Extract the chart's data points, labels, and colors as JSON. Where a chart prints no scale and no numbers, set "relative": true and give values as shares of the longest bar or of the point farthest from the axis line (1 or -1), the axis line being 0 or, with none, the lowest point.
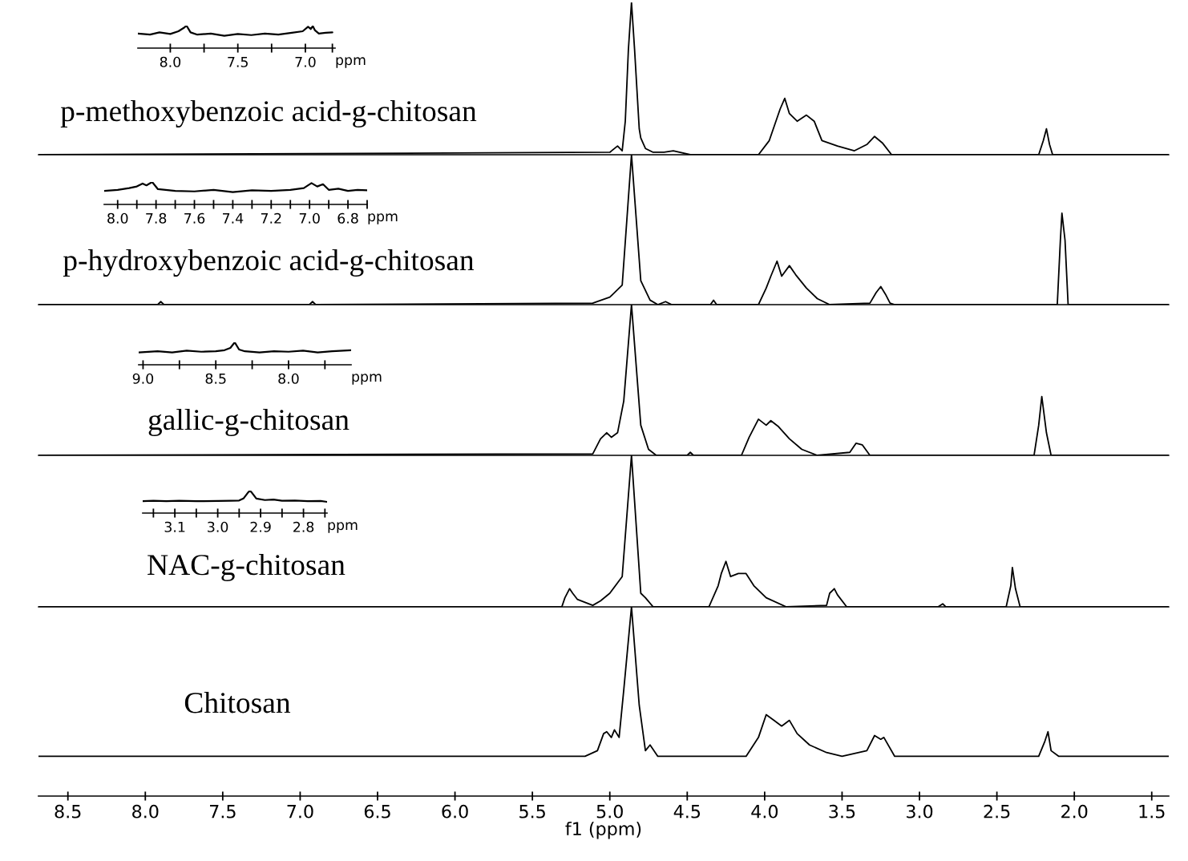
{
  "chart_data": [
    {
      "type": "line",
      "relative": true,
      "tick_labels": false,
      "xlim": [
        8.69,
        1.39
      ],
      "x": [
        8.69,
        5.0,
        4.95,
        4.92,
        4.9,
        4.88,
        4.86,
        4.84,
        4.81,
        4.8,
        4.77,
        4.72,
        4.65,
        4.59,
        4.48,
        4.04,
        3.97,
        3.9,
        3.87,
        3.84,
        3.79,
        3.73,
        3.68,
        3.63,
        3.53,
        3.42,
        3.34,
        3.29,
        3.24,
        3.18,
        2.23,
        2.2,
        2.18,
        2.16,
        2.14,
        1.39
      ],
      "series": [
        {
          "name": "p-methoxybenzoic acid-g-chitosan",
          "color": "#000000",
          "values": [
            0,
            0.016,
            0.057,
            0.026,
            0.22,
            0.69,
            1,
            0.69,
            0.17,
            0.11,
            0.041,
            0.016,
            0.016,
            0.026,
            0,
            0,
            0.093,
            0.3,
            0.37,
            0.27,
            0.22,
            0.26,
            0.22,
            0.093,
            0.057,
            0.026,
            0.067,
            0.12,
            0.078,
            0,
            0,
            0.093,
            0.17,
            0.067,
            0,
            0
          ]
        }
      ]
    },
    {
      "type": "line",
      "relative": true,
      "tick_labels": false,
      "xlim": [
        8.69,
        1.39
      ],
      "x": [
        8.69,
        7.92,
        7.9,
        7.88,
        6.94,
        6.92,
        6.9,
        5.11,
        5.0,
        4.92,
        4.86,
        4.8,
        4.74,
        4.69,
        4.64,
        4.6,
        4.35,
        4.33,
        4.31,
        4.04,
        3.99,
        3.96,
        3.92,
        3.89,
        3.84,
        3.8,
        3.73,
        3.66,
        3.58,
        3.32,
        3.28,
        3.25,
        3.22,
        3.19,
        3.16,
        2.11,
        2.09,
        2.08,
        2.06,
        2.04,
        1.39
      ],
      "series": [
        {
          "name": "p-hydroxybenzoic acid-g-chitosan",
          "color": "#000000",
          "values": [
            0,
            0,
            0.02,
            0,
            0,
            0.02,
            0,
            0.01,
            0.05,
            0.13,
            1,
            0.16,
            0.03,
            0,
            0.02,
            0,
            0,
            0.03,
            0,
            0,
            0.11,
            0.19,
            0.29,
            0.19,
            0.26,
            0.2,
            0.11,
            0.04,
            0,
            0.01,
            0.08,
            0.12,
            0.07,
            0.01,
            0,
            0,
            0.43,
            0.61,
            0.43,
            0,
            0
          ]
        }
      ]
    },
    {
      "type": "line",
      "relative": true,
      "tick_labels": false,
      "xlim": [
        8.69,
        1.39
      ],
      "x": [
        8.69,
        5.11,
        5.06,
        5.02,
        4.99,
        4.95,
        4.91,
        4.86,
        4.8,
        4.75,
        4.7,
        4.5,
        4.48,
        4.46,
        4.15,
        4.1,
        4.04,
        3.99,
        3.96,
        3.91,
        3.84,
        3.76,
        3.66,
        3.45,
        3.41,
        3.37,
        3.32,
        2.26,
        2.23,
        2.21,
        2.18,
        2.15,
        1.39
      ],
      "series": [
        {
          "name": "gallic-g-chitosan",
          "color": "#000000",
          "values": [
            0,
            0.01,
            0.11,
            0.15,
            0.12,
            0.15,
            0.36,
            1,
            0.2,
            0.04,
            0,
            0,
            0.02,
            0,
            0,
            0.12,
            0.24,
            0.2,
            0.23,
            0.19,
            0.11,
            0.04,
            0,
            0.02,
            0.08,
            0.07,
            0,
            0,
            0.2,
            0.39,
            0.15,
            0,
            0
          ]
        }
      ]
    },
    {
      "type": "line",
      "relative": true,
      "tick_labels": false,
      "xlim": [
        8.69,
        1.39
      ],
      "x": [
        8.69,
        5.31,
        5.29,
        5.26,
        5.24,
        5.21,
        5.11,
        5.06,
        5.0,
        4.92,
        4.86,
        4.8,
        4.77,
        4.72,
        4.36,
        4.3,
        4.28,
        4.25,
        4.22,
        4.17,
        4.12,
        4.07,
        3.99,
        3.86,
        3.6,
        3.58,
        3.55,
        3.53,
        3.47,
        2.88,
        2.85,
        2.83,
        2.44,
        2.41,
        2.4,
        2.38,
        2.35,
        1.39
      ],
      "series": [
        {
          "name": "NAC-g-chitosan",
          "color": "#000000",
          "values": [
            0,
            0,
            0.06,
            0.12,
            0.09,
            0.05,
            0.01,
            0.04,
            0.09,
            0.2,
            1,
            0.09,
            0.06,
            0,
            0,
            0.14,
            0.22,
            0.3,
            0.2,
            0.22,
            0.22,
            0.14,
            0.06,
            0,
            0.01,
            0.09,
            0.12,
            0.08,
            0,
            0,
            0.02,
            0,
            0,
            0.14,
            0.26,
            0.12,
            0,
            0
          ]
        }
      ]
    },
    {
      "type": "line",
      "relative": true,
      "tick_labels": "x",
      "xlim": [
        8.69,
        1.39
      ],
      "xlabel": "f1 (ppm)",
      "xticks": [
        {
          "value": 8.5,
          "label": "8.5"
        },
        {
          "value": 8,
          "label": "8.0"
        },
        {
          "value": 7.5,
          "label": "7.5"
        },
        {
          "value": 7,
          "label": "7.0"
        },
        {
          "value": 6.5,
          "label": "6.5"
        },
        {
          "value": 6,
          "label": "6.0"
        },
        {
          "value": 5.5,
          "label": "5.5"
        },
        {
          "value": 5,
          "label": "5.0"
        },
        {
          "value": 4.5,
          "label": "4.5"
        },
        {
          "value": 4,
          "label": "4.0"
        },
        {
          "value": 3.5,
          "label": "3.5"
        },
        {
          "value": 3,
          "label": "3.0"
        },
        {
          "value": 2.5,
          "label": "2.5"
        },
        {
          "value": 2,
          "label": "2.0"
        },
        {
          "value": 1.5,
          "label": "1.5"
        }
      ],
      "x": [
        8.69,
        5.16,
        5.08,
        5.04,
        5.02,
        4.99,
        4.97,
        4.94,
        4.91,
        4.86,
        4.81,
        4.77,
        4.74,
        4.69,
        4.12,
        4.04,
        3.99,
        3.94,
        3.89,
        3.84,
        3.79,
        3.71,
        3.6,
        3.5,
        3.34,
        3.29,
        3.25,
        3.23,
        3.16,
        2.23,
        2.19,
        2.17,
        2.15,
        2.1,
        1.39
      ],
      "series": [
        {
          "name": "Chitosan",
          "color": "#000000",
          "values": [
            0.21,
            0.21,
            0.24,
            0.33,
            0.34,
            0.31,
            0.35,
            0.31,
            0.56,
            1,
            0.48,
            0.24,
            0.27,
            0.21,
            0.21,
            0.31,
            0.43,
            0.4,
            0.37,
            0.4,
            0.33,
            0.27,
            0.23,
            0.21,
            0.24,
            0.32,
            0.3,
            0.31,
            0.21,
            0.21,
            0.29,
            0.34,
            0.24,
            0.21,
            0.21
          ]
        }
      ]
    },
    {
      "type": "line",
      "relative": true,
      "tick_labels": "x",
      "xlim": [
        8.24,
        6.78
      ],
      "xlabel": "ppm",
      "xticks": [
        {
          "value": 8,
          "label": "8.0"
        },
        {
          "value": 7.75,
          "label": null
        },
        {
          "value": 7.5,
          "label": "7.5"
        },
        {
          "value": 7.25,
          "label": null
        },
        {
          "value": 7,
          "label": "7.0"
        },
        {
          "value": 6.8,
          "label": null
        }
      ],
      "x": [
        8.24,
        8.15,
        8.08,
        8.0,
        7.94,
        7.9,
        7.88,
        7.85,
        7.8,
        7.7,
        7.6,
        7.5,
        7.4,
        7.3,
        7.2,
        7.1,
        7.02,
        6.98,
        6.96,
        6.945,
        6.93,
        6.9,
        6.85,
        6.8
      ],
      "series": [
        {
          "color": "#000000",
          "values": [
            0.65,
            0.6,
            0.7,
            0.63,
            0.75,
            0.9,
            1,
            0.7,
            0.6,
            0.65,
            0.55,
            0.63,
            0.58,
            0.65,
            0.6,
            0.68,
            0.75,
            0.95,
            0.85,
            0.98,
            0.8,
            0.65,
            0.68,
            0.7
          ]
        }
      ]
    },
    {
      "type": "line",
      "relative": true,
      "tick_labels": "x",
      "xlim": [
        8.07,
        6.7
      ],
      "xlabel": "ppm",
      "xticks": [
        {
          "value": 8,
          "label": "8.0"
        },
        {
          "value": 7.9,
          "label": null
        },
        {
          "value": 7.8,
          "label": "7.8"
        },
        {
          "value": 7.7,
          "label": null
        },
        {
          "value": 7.6,
          "label": "7.6"
        },
        {
          "value": 7.5,
          "label": null
        },
        {
          "value": 7.4,
          "label": "7.4"
        },
        {
          "value": 7.3,
          "label": null
        },
        {
          "value": 7.2,
          "label": "7.2"
        },
        {
          "value": 7.1,
          "label": null
        },
        {
          "value": 7,
          "label": "7.0"
        },
        {
          "value": 6.9,
          "label": null
        },
        {
          "value": 6.8,
          "label": "6.8"
        },
        {
          "value": 6.7,
          "label": null
        }
      ],
      "x": [
        8.07,
        8.0,
        7.94,
        7.9,
        7.87,
        7.85,
        7.82,
        7.79,
        7.7,
        7.6,
        7.5,
        7.4,
        7.3,
        7.2,
        7.1,
        7.03,
        6.99,
        6.96,
        6.93,
        6.9,
        6.85,
        6.8,
        6.75,
        6.7
      ],
      "series": [
        {
          "color": "#000000",
          "values": [
            0.6,
            0.65,
            0.73,
            0.8,
            0.93,
            0.85,
            1,
            0.68,
            0.6,
            0.58,
            0.65,
            0.55,
            0.63,
            0.6,
            0.65,
            0.73,
            0.95,
            0.8,
            0.9,
            0.65,
            0.7,
            0.6,
            0.65,
            0.63
          ]
        }
      ]
    },
    {
      "type": "line",
      "relative": true,
      "tick_labels": "x",
      "xlim": [
        9.03,
        7.57
      ],
      "xlabel": "ppm",
      "xticks": [
        {
          "value": 9,
          "label": "9.0"
        },
        {
          "value": 8.75,
          "label": null
        },
        {
          "value": 8.5,
          "label": "8.5"
        },
        {
          "value": 8.25,
          "label": null
        },
        {
          "value": 8,
          "label": "8.0"
        },
        {
          "value": 7.75,
          "label": null
        }
      ],
      "x": [
        9.03,
        8.9,
        8.8,
        8.7,
        8.6,
        8.5,
        8.44,
        8.4,
        8.37,
        8.34,
        8.3,
        8.2,
        8.1,
        8.0,
        7.9,
        7.8,
        7.7,
        7.57
      ],
      "series": [
        {
          "color": "#000000",
          "values": [
            0.55,
            0.6,
            0.55,
            0.63,
            0.58,
            0.6,
            0.65,
            0.75,
            1,
            0.68,
            0.6,
            0.55,
            0.6,
            0.58,
            0.63,
            0.55,
            0.6,
            0.65
          ]
        }
      ]
    },
    {
      "type": "line",
      "relative": true,
      "tick_labels": "x",
      "xlim": [
        3.175,
        2.745
      ],
      "xlabel": "ppm",
      "xticks": [
        {
          "value": 3.15,
          "label": null
        },
        {
          "value": 3.1,
          "label": "3.1"
        },
        {
          "value": 3.05,
          "label": null
        },
        {
          "value": 3.0,
          "label": "3.0"
        },
        {
          "value": 2.95,
          "label": null
        },
        {
          "value": 2.9,
          "label": "2.9"
        },
        {
          "value": 2.85,
          "label": null
        },
        {
          "value": 2.8,
          "label": "2.8"
        },
        {
          "value": 2.75,
          "label": null
        }
      ],
      "x": [
        3.175,
        3.15,
        3.12,
        3.09,
        3.05,
        3.0,
        2.97,
        2.95,
        2.94,
        2.93,
        2.925,
        2.92,
        2.91,
        2.89,
        2.87,
        2.85,
        2.82,
        2.79,
        2.76,
        2.745
      ],
      "series": [
        {
          "color": "#000000",
          "values": [
            0.53,
            0.55,
            0.53,
            0.55,
            0.53,
            0.54,
            0.55,
            0.56,
            0.65,
            0.9,
            1,
            0.9,
            0.65,
            0.58,
            0.6,
            0.55,
            0.56,
            0.53,
            0.54,
            0.5
          ]
        }
      ]
    }
  ]
}
